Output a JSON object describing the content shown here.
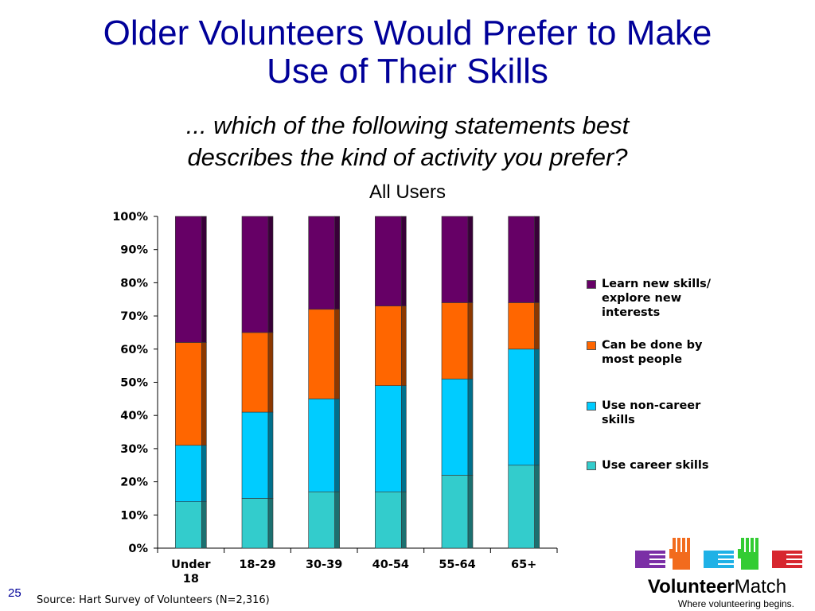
{
  "slide": {
    "title_line1": "Older Volunteers Would Prefer to Make",
    "title_line2": "Use of Their Skills",
    "subtitle_line1": "... which of the following statements best",
    "subtitle_line2": "describes the kind of activity you prefer?",
    "page_number": "25",
    "source": "Source: Hart Survey of Volunteers (N=2,316)"
  },
  "logo": {
    "word_bold": "Volunteer",
    "word_regular": "Match",
    "tagline": "Where volunteering begins.",
    "hand_colors": [
      "#7b2fa6",
      "#f26b1d",
      "#1fb1e6",
      "#33cc33",
      "#d7262e"
    ]
  },
  "chart_data": {
    "type": "bar",
    "stacked": true,
    "title": "All Users",
    "categories": [
      [
        "Under",
        "18"
      ],
      [
        "18-29"
      ],
      [
        "30-39"
      ],
      [
        "40-54"
      ],
      [
        "55-64"
      ],
      [
        "65+"
      ]
    ],
    "ylim": [
      0,
      100
    ],
    "yticks": [
      "0%",
      "10%",
      "20%",
      "30%",
      "40%",
      "50%",
      "60%",
      "70%",
      "80%",
      "90%",
      "100%"
    ],
    "legend_position": "right",
    "series": [
      {
        "name": "Use career skills",
        "color": "#33cccc",
        "values": [
          14,
          15,
          17,
          17,
          22,
          25
        ]
      },
      {
        "name": "Use non-career skills",
        "color": "#00ccff",
        "values": [
          17,
          26,
          28,
          32,
          29,
          35
        ]
      },
      {
        "name": "Can be done by most people",
        "color": "#ff6600",
        "values": [
          31,
          24,
          27,
          24,
          23,
          14
        ]
      },
      {
        "name": "Learn new skills/ explore new interests",
        "color": "#660066",
        "values": [
          38,
          35,
          28,
          27,
          26,
          26
        ]
      }
    ],
    "legend": [
      {
        "label_lines": [
          "Learn new skills/",
          "explore new",
          "interests"
        ],
        "color": "#660066"
      },
      {
        "label_lines": [
          "Can be done by",
          "most people"
        ],
        "color": "#ff6600"
      },
      {
        "label_lines": [
          "Use non-career",
          "skills"
        ],
        "color": "#00ccff"
      },
      {
        "label_lines": [
          "Use career skills"
        ],
        "color": "#33cccc"
      }
    ]
  }
}
